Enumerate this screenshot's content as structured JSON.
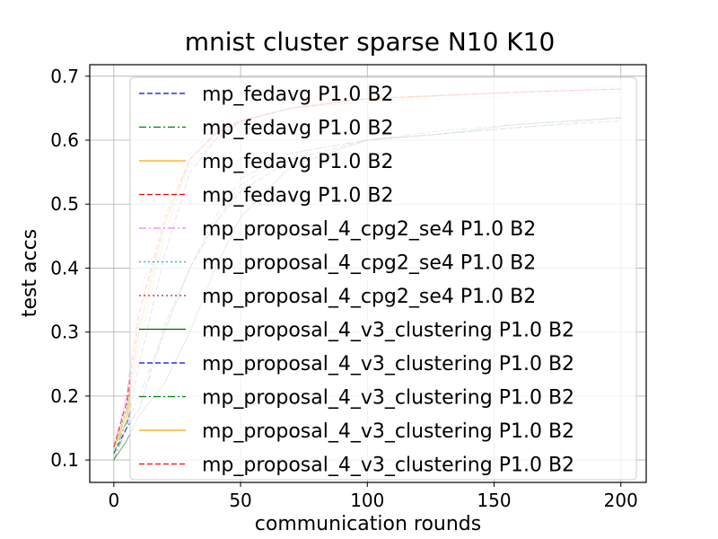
{
  "chart_data": {
    "type": "line",
    "title": "mnist cluster sparse N10 K10",
    "xlabel": "communication rounds",
    "ylabel": "test accs",
    "xlim": [
      -9.5,
      210
    ],
    "ylim": [
      0.065,
      0.718
    ],
    "xticks": [
      0,
      50,
      100,
      150,
      200
    ],
    "yticks": [
      0.1,
      0.2,
      0.3,
      0.4,
      0.5,
      0.6,
      0.7
    ],
    "xtick_labels": [
      "0",
      "50",
      "100",
      "150",
      "200"
    ],
    "ytick_labels": [
      "0.1",
      "0.2",
      "0.3",
      "0.4",
      "0.5",
      "0.6",
      "0.7"
    ],
    "grid": true,
    "legend_position": "upper-left-inside",
    "series": [
      {
        "name": "mp_fedavg P1.0 B2",
        "color": "#0000ff",
        "dash": "dashed",
        "x": [
          0,
          5,
          10,
          20,
          30,
          40,
          50,
          70,
          100,
          130,
          160,
          200
        ],
        "y": [
          0.11,
          0.15,
          0.18,
          0.31,
          0.4,
          0.47,
          0.52,
          0.57,
          0.6,
          0.61,
          0.62,
          0.63
        ]
      },
      {
        "name": "mp_fedavg P1.0 B2",
        "color": "#008000",
        "dash": "dashdot",
        "x": [
          0,
          5,
          10,
          20,
          30,
          40,
          50,
          70,
          100,
          130,
          160,
          200
        ],
        "y": [
          0.1,
          0.15,
          0.18,
          0.3,
          0.4,
          0.47,
          0.53,
          0.58,
          0.6,
          0.61,
          0.62,
          0.635
        ]
      },
      {
        "name": "mp_fedavg P1.0 B2",
        "color": "#ffa500",
        "dash": "solid",
        "x": [
          0,
          5,
          10,
          20,
          30,
          40,
          50,
          70,
          100,
          130,
          160,
          200
        ],
        "y": [
          0.12,
          0.16,
          0.28,
          0.45,
          0.57,
          0.61,
          0.63,
          0.65,
          0.66,
          0.67,
          0.675,
          0.68
        ]
      },
      {
        "name": "mp_fedavg P1.0 B2",
        "color": "#ff0000",
        "dash": "dashed",
        "x": [
          0,
          5,
          10,
          20,
          30,
          40,
          50,
          70,
          100,
          130,
          160,
          200
        ],
        "y": [
          0.12,
          0.19,
          0.33,
          0.47,
          0.57,
          0.61,
          0.63,
          0.65,
          0.665,
          0.67,
          0.675,
          0.68
        ]
      },
      {
        "name": "mp_proposal_4_cpg2_se4 P1.0 B2",
        "color": "#ee82ee",
        "dash": "dashdot",
        "x": [
          0,
          5,
          10,
          20,
          30,
          40,
          50,
          70,
          100,
          130,
          160,
          200
        ],
        "y": [
          0.12,
          0.2,
          0.35,
          0.5,
          0.58,
          0.62,
          0.63,
          0.65,
          0.665,
          0.67,
          0.675,
          0.685
        ]
      },
      {
        "name": "mp_proposal_4_cpg2_se4 P1.0 B2",
        "color": "#00bfbf",
        "dash": "dotted",
        "x": [
          0,
          5,
          10,
          20,
          30,
          40,
          50,
          70,
          100,
          130,
          160,
          200
        ],
        "y": [
          0.11,
          0.18,
          0.3,
          0.46,
          0.56,
          0.6,
          0.63,
          0.65,
          0.66,
          0.665,
          0.67,
          0.675
        ]
      },
      {
        "name": "mp_proposal_4_cpg2_se4 P1.0 B2",
        "color": "#a52a2a",
        "dash": "dotted",
        "x": [
          0,
          5,
          10,
          20,
          30,
          40,
          50,
          70,
          100,
          130,
          160,
          200
        ],
        "y": [
          0.12,
          0.18,
          0.31,
          0.47,
          0.57,
          0.61,
          0.63,
          0.65,
          0.665,
          0.67,
          0.675,
          0.68
        ]
      },
      {
        "name": "mp_proposal_4_v3_clustering P1.0 B2",
        "color": "#006400",
        "dash": "solid",
        "x": [
          0,
          5,
          10,
          20,
          30,
          40,
          50,
          70,
          100,
          130,
          160,
          200
        ],
        "y": [
          0.1,
          0.13,
          0.17,
          0.22,
          0.3,
          0.4,
          0.48,
          0.56,
          0.6,
          0.61,
          0.625,
          0.635
        ]
      },
      {
        "name": "mp_proposal_4_v3_clustering P1.0 B2",
        "color": "#0000ff",
        "dash": "dashed",
        "x": [
          0,
          5,
          10,
          20,
          30,
          40,
          50,
          70,
          100,
          130,
          160,
          200
        ],
        "y": [
          0.11,
          0.15,
          0.25,
          0.42,
          0.55,
          0.6,
          0.63,
          0.65,
          0.665,
          0.67,
          0.675,
          0.68
        ]
      },
      {
        "name": "mp_proposal_4_v3_clustering P1.0 B2",
        "color": "#008000",
        "dash": "dashdot",
        "x": [
          0,
          5,
          10,
          20,
          30,
          40,
          50,
          70,
          100,
          130,
          160,
          200
        ],
        "y": [
          0.11,
          0.16,
          0.2,
          0.3,
          0.4,
          0.48,
          0.54,
          0.58,
          0.6,
          0.615,
          0.625,
          0.635
        ]
      },
      {
        "name": "mp_proposal_4_v3_clustering P1.0 B2",
        "color": "#ffa500",
        "dash": "solid",
        "x": [
          0,
          5,
          10,
          20,
          30,
          40,
          50,
          70,
          100,
          130,
          160,
          200
        ],
        "y": [
          0.12,
          0.17,
          0.3,
          0.47,
          0.57,
          0.61,
          0.63,
          0.65,
          0.665,
          0.67,
          0.675,
          0.68
        ]
      },
      {
        "name": "mp_proposal_4_v3_clustering P1.0 B2",
        "color": "#ff0000",
        "dash": "dashed",
        "x": [
          0,
          5,
          10,
          20,
          30,
          40,
          50,
          70,
          100,
          130,
          160,
          200
        ],
        "y": [
          0.12,
          0.19,
          0.33,
          0.48,
          0.57,
          0.61,
          0.63,
          0.65,
          0.665,
          0.67,
          0.675,
          0.68
        ]
      }
    ]
  }
}
